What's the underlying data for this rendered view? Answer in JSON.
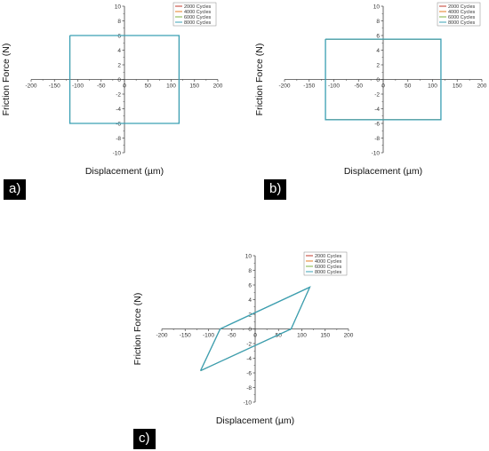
{
  "panel_labels": [
    "a)",
    "b)",
    "c)"
  ],
  "chart_data": [
    {
      "type": "line",
      "xlabel": "Displacement (µm)",
      "ylabel": "Friction Force (N)",
      "xlim": [
        -200,
        200
      ],
      "ylim": [
        -10,
        10
      ],
      "x_ticks": [
        -200,
        -150,
        -100,
        -50,
        0,
        50,
        100,
        150,
        200
      ],
      "y_ticks": [
        -10,
        -8,
        -6,
        -4,
        -2,
        0,
        2,
        4,
        6,
        8,
        10
      ],
      "legend_position": "top-right",
      "series": [
        {
          "name": "2000 Cycles",
          "color": "#c0392b",
          "x": [
            -117,
            117,
            117,
            -117,
            -117
          ],
          "y": [
            6,
            6,
            -6,
            -6,
            6
          ]
        },
        {
          "name": "4000 Cycles",
          "color": "#e67e22",
          "x": [
            -117,
            117,
            117,
            -117,
            -117
          ],
          "y": [
            6,
            6,
            -6,
            -6,
            6
          ]
        },
        {
          "name": "6000 Cycles",
          "color": "#7cb342",
          "x": [
            -117,
            117,
            117,
            -117,
            -117
          ],
          "y": [
            6,
            6,
            -6,
            -6,
            6
          ]
        },
        {
          "name": "8000 Cycles",
          "color": "#3aa0b5",
          "x": [
            -117,
            117,
            117,
            -117,
            -117
          ],
          "y": [
            6,
            6,
            -6,
            -6,
            6
          ]
        }
      ]
    },
    {
      "type": "line",
      "xlabel": "Displacement (µm)",
      "ylabel": "Friction Force (N)",
      "xlim": [
        -200,
        200
      ],
      "ylim": [
        -10,
        10
      ],
      "x_ticks": [
        -200,
        -150,
        -100,
        -50,
        0,
        50,
        100,
        150,
        200
      ],
      "y_ticks": [
        -10,
        -8,
        -6,
        -4,
        -2,
        0,
        2,
        4,
        6,
        8,
        10
      ],
      "legend_position": "top-right",
      "series": [
        {
          "name": "2000 Cycles",
          "color": "#c0392b",
          "x": [
            -117,
            117,
            117,
            -117,
            -117
          ],
          "y": [
            5.5,
            5.5,
            -5.5,
            -5.5,
            5.5
          ]
        },
        {
          "name": "4000 Cycles",
          "color": "#e67e22",
          "x": [
            -117,
            117,
            117,
            -117,
            -117
          ],
          "y": [
            5.5,
            5.5,
            -5.5,
            -5.5,
            5.5
          ]
        },
        {
          "name": "6000 Cycles",
          "color": "#7cb342",
          "x": [
            -117,
            117,
            117,
            -117,
            -117
          ],
          "y": [
            5.5,
            5.5,
            -5.5,
            -5.5,
            5.5
          ]
        },
        {
          "name": "8000 Cycles",
          "color": "#3aa0b5",
          "x": [
            -117,
            117,
            117,
            -117,
            -117
          ],
          "y": [
            5.5,
            5.5,
            -5.5,
            -5.5,
            5.5
          ]
        }
      ]
    },
    {
      "type": "line",
      "xlabel": "Displacement (µm)",
      "ylabel": "Friction Force (N)",
      "xlim": [
        -200,
        200
      ],
      "ylim": [
        -10,
        10
      ],
      "x_ticks": [
        -200,
        -150,
        -100,
        -50,
        0,
        50,
        100,
        150,
        200
      ],
      "y_ticks": [
        -10,
        -8,
        -6,
        -4,
        -2,
        0,
        2,
        4,
        6,
        8,
        10
      ],
      "legend_position": "top-right",
      "series": [
        {
          "name": "2000 Cycles",
          "color": "#c0392b",
          "x": [
            -117,
            -75,
            117,
            77,
            -117
          ],
          "y": [
            -5.7,
            0,
            5.7,
            0,
            -5.7
          ]
        },
        {
          "name": "4000 Cycles",
          "color": "#e67e22",
          "x": [
            -117,
            -75,
            117,
            77,
            -117
          ],
          "y": [
            -5.7,
            0,
            5.7,
            0,
            -5.7
          ]
        },
        {
          "name": "6000 Cycles",
          "color": "#7cb342",
          "x": [
            -117,
            -75,
            117,
            77,
            -117
          ],
          "y": [
            -5.7,
            0,
            5.7,
            0,
            -5.7
          ]
        },
        {
          "name": "8000 Cycles",
          "color": "#3aa0b5",
          "x": [
            -117,
            -75,
            117,
            77,
            -117
          ],
          "y": [
            -5.7,
            0,
            5.7,
            0,
            -5.7
          ]
        }
      ]
    }
  ]
}
